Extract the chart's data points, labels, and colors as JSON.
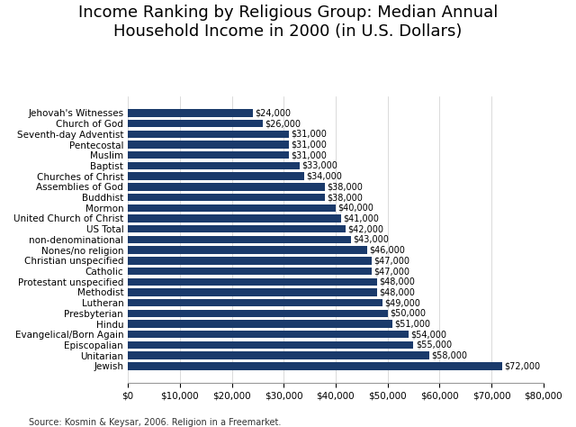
{
  "title": "Income Ranking by Religious Group: Median Annual\nHousehold Income in 2000 (in U.S. Dollars)",
  "categories": [
    "Jewish",
    "Unitarian",
    "Episcopalian",
    "Evangelical/Born Again",
    "Hindu",
    "Presbyterian",
    "Lutheran",
    "Methodist",
    "Protestant unspecified",
    "Catholic",
    "Christian unspecified",
    "Nones/no religion",
    "non-denominational",
    "US Total",
    "United Church of Christ",
    "Mormon",
    "Buddhist",
    "Assemblies of God",
    "Churches of Christ",
    "Baptist",
    "Muslim",
    "Pentecostal",
    "Seventh-day Adventist",
    "Church of God",
    "Jehovah's Witnesses"
  ],
  "values": [
    72000,
    58000,
    55000,
    54000,
    51000,
    50000,
    49000,
    48000,
    48000,
    47000,
    47000,
    46000,
    43000,
    42000,
    41000,
    40000,
    38000,
    38000,
    34000,
    33000,
    31000,
    31000,
    31000,
    26000,
    24000
  ],
  "bar_color": "#1a3a6b",
  "label_color": "#000000",
  "background_color": "#FFFFFF",
  "source_text": "Source: Kosmin & Keysar, 2006. Religion in a Freemarket.",
  "xlim": [
    0,
    80000
  ],
  "xticks": [
    0,
    10000,
    20000,
    30000,
    40000,
    50000,
    60000,
    70000,
    80000
  ],
  "title_fontsize": 13,
  "tick_fontsize": 7.5,
  "ylabel_fontsize": 7.5,
  "value_fontsize": 7.0
}
